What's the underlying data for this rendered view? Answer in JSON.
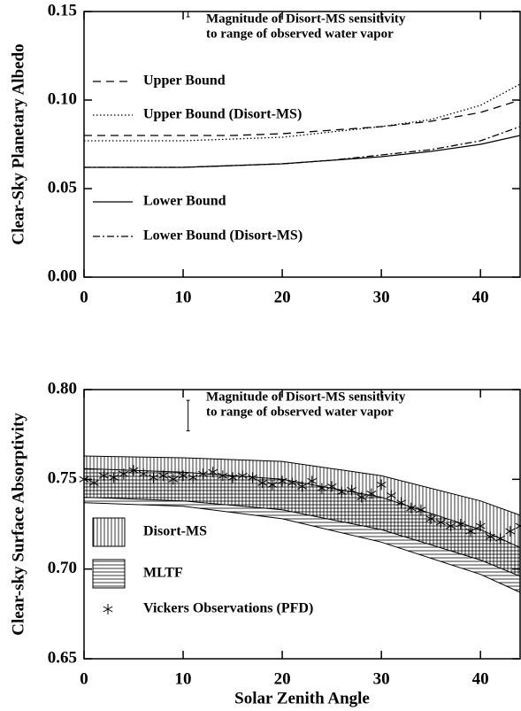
{
  "chart_data": [
    {
      "type": "line",
      "ylabel": "Clear-Sky Planetary Albedo",
      "xlim": [
        0,
        44
      ],
      "ylim": [
        0,
        0.15
      ],
      "xticks": [
        0,
        10,
        20,
        30,
        40
      ],
      "yticks": [
        {
          "value": 0,
          "label": "0.00"
        },
        0.05,
        {
          "value": 0.1,
          "label": "0.10"
        },
        0.15
      ],
      "annotation": [
        "Magnitude of Disort-MS sensitivity",
        "to range of observed water vapor"
      ],
      "error_bar": {
        "x": 10.5,
        "y": 0.1485,
        "error": 0.0015
      },
      "x": [
        0,
        5,
        10,
        15,
        20,
        25,
        30,
        35,
        40,
        44
      ],
      "series": [
        {
          "name": "Upper Bound",
          "color": "#000000",
          "style": "dashed",
          "values": [
            0.08,
            0.08,
            0.08,
            0.08,
            0.081,
            0.083,
            0.085,
            0.088,
            0.093,
            0.1
          ]
        },
        {
          "name": "Upper Bound (Disort-MS)",
          "color": "#000000",
          "style": "dotted",
          "values": [
            0.077,
            0.077,
            0.077,
            0.078,
            0.079,
            0.082,
            0.085,
            0.089,
            0.097,
            0.109
          ]
        },
        {
          "name": "Lower Bound",
          "color": "#000000",
          "style": "solid",
          "values": [
            0.062,
            0.062,
            0.062,
            0.063,
            0.064,
            0.066,
            0.068,
            0.071,
            0.075,
            0.08
          ]
        },
        {
          "name": "Lower Bound (Disort-MS)",
          "color": "#000000",
          "style": "dashdot",
          "values": [
            0.062,
            0.062,
            0.062,
            0.063,
            0.064,
            0.066,
            0.069,
            0.072,
            0.077,
            0.085
          ]
        }
      ]
    },
    {
      "type": "band",
      "ylabel": "Clear-sky Surface Absorptivity",
      "xlabel": "Solar Zenith Angle",
      "xlim": [
        0,
        44
      ],
      "ylim": [
        0.65,
        0.8
      ],
      "xticks": [
        0,
        10,
        20,
        30,
        40
      ],
      "yticks": [
        0.65,
        {
          "value": 0.7,
          "label": "0.70"
        },
        0.75,
        {
          "value": 0.8,
          "label": "0.80"
        }
      ],
      "annotation": [
        "Magnitude of Disort-MS sensitivity",
        "to range of observed water vapor"
      ],
      "error_bar": {
        "x": 10.5,
        "y": 0.7855,
        "error": 0.0085
      },
      "x": [
        0,
        10,
        20,
        30,
        40,
        44
      ],
      "series": [
        {
          "name": "Disort-MS",
          "color": "#000000",
          "hatch": "vertical",
          "upper": [
            0.763,
            0.762,
            0.76,
            0.752,
            0.738,
            0.73
          ],
          "lower": [
            0.74,
            0.738,
            0.733,
            0.722,
            0.705,
            0.696
          ]
        },
        {
          "name": "MLTF",
          "color": "#000000",
          "hatch": "horizontal",
          "upper": [
            0.756,
            0.754,
            0.75,
            0.74,
            0.722,
            0.712
          ],
          "lower": [
            0.737,
            0.735,
            0.728,
            0.715,
            0.697,
            0.687
          ]
        },
        {
          "name": "Vickers Observations (PFD)",
          "color": "#000000",
          "marker": "asterisk",
          "x": [
            0,
            1,
            2,
            3,
            4,
            5,
            6,
            7,
            8,
            9,
            10,
            11,
            12,
            13,
            14,
            15,
            16,
            17,
            18,
            19,
            20,
            21,
            22,
            23,
            24,
            25,
            26,
            27,
            28,
            29,
            30,
            31,
            32,
            33,
            34,
            35,
            36,
            37,
            38,
            39,
            40,
            41,
            42,
            43,
            44
          ],
          "values": [
            0.75,
            0.748,
            0.752,
            0.751,
            0.753,
            0.755,
            0.753,
            0.751,
            0.752,
            0.75,
            0.752,
            0.751,
            0.753,
            0.754,
            0.752,
            0.751,
            0.752,
            0.751,
            0.748,
            0.747,
            0.749,
            0.748,
            0.746,
            0.749,
            0.745,
            0.746,
            0.743,
            0.744,
            0.74,
            0.742,
            0.747,
            0.741,
            0.737,
            0.734,
            0.733,
            0.728,
            0.726,
            0.724,
            0.725,
            0.721,
            0.724,
            0.718,
            0.717,
            0.721,
            0.724
          ]
        }
      ]
    }
  ]
}
